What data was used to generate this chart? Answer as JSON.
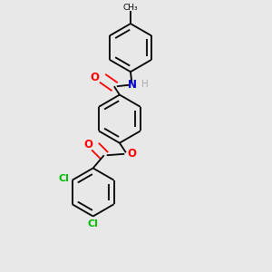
{
  "bg_color": "#e8e8e8",
  "bond_color": "#000000",
  "o_color": "#ff0000",
  "n_color": "#0000cc",
  "cl_color": "#00bb00",
  "lw": 1.3,
  "dbo": 0.018,
  "r": 0.088,
  "figsize": [
    3.0,
    3.0
  ],
  "dpi": 100,
  "xlim": [
    0.15,
    0.75
  ],
  "ylim": [
    0.02,
    1.0
  ]
}
